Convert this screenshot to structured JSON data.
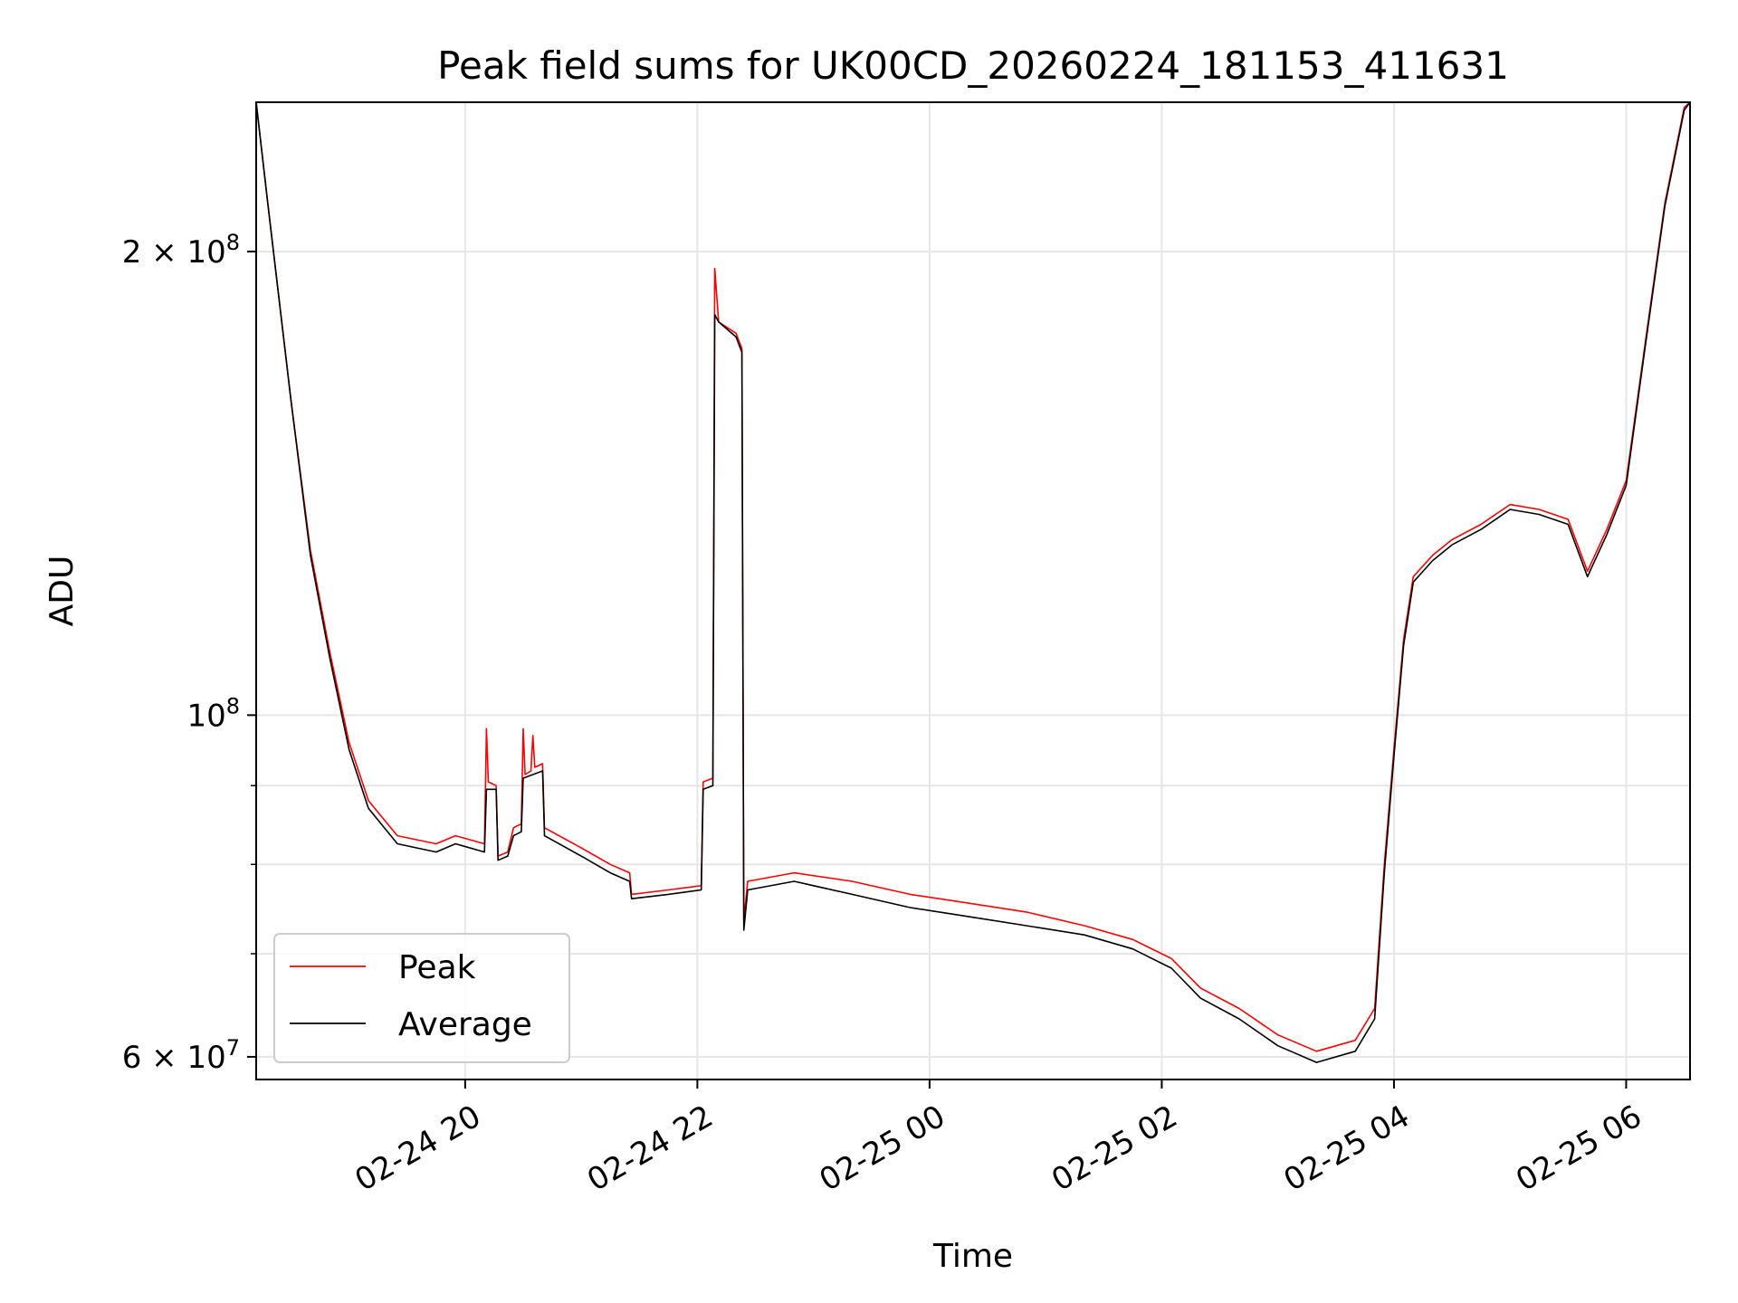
{
  "chart_data": {
    "type": "line",
    "title": "Peak field sums for UK00CD_20260224_181153_411631",
    "xlabel": "Time",
    "ylabel": "ADU",
    "yscale": "log",
    "xlim": [
      "2026-02-24 18:12",
      "2026-02-25 06:33"
    ],
    "ylim": [
      58000000,
      250000000
    ],
    "grid": true,
    "legend": {
      "position": "lower-left",
      "entries": [
        "Peak",
        "Average"
      ]
    },
    "colors": {
      "Peak": "#ff0000",
      "Average": "#000000",
      "grid": "#e6e6e6"
    },
    "x_ticks": [
      {
        "t": "2026-02-24 20:00",
        "label": "02-24 20"
      },
      {
        "t": "2026-02-24 22:00",
        "label": "02-24 22"
      },
      {
        "t": "2026-02-25 00:00",
        "label": "02-25 00"
      },
      {
        "t": "2026-02-25 02:00",
        "label": "02-25 02"
      },
      {
        "t": "2026-02-25 04:00",
        "label": "02-25 04"
      },
      {
        "t": "2026-02-25 06:00",
        "label": "02-25 06"
      }
    ],
    "y_major_ticks": [
      {
        "value": 60000000,
        "mantissa": "6",
        "exp": "7"
      },
      {
        "value": 100000000,
        "mantissa": "",
        "exp": "8"
      },
      {
        "value": 200000000,
        "mantissa": "2",
        "exp": "8"
      }
    ],
    "y_minor_ticks": [
      70000000,
      80000000,
      90000000
    ],
    "series": [
      {
        "name": "Peak",
        "points": [
          [
            "2026-02-24 18:12",
            250000000
          ],
          [
            "2026-02-24 18:18",
            215000000
          ],
          [
            "2026-02-24 18:30",
            160000000
          ],
          [
            "2026-02-24 18:40",
            128000000
          ],
          [
            "2026-02-24 18:50",
            110000000
          ],
          [
            "2026-02-24 19:00",
            96000000
          ],
          [
            "2026-02-24 19:10",
            88000000
          ],
          [
            "2026-02-24 19:25",
            83500000
          ],
          [
            "2026-02-24 19:45",
            82500000
          ],
          [
            "2026-02-24 19:55",
            83500000
          ],
          [
            "2026-02-24 20:10",
            82500000
          ],
          [
            "2026-02-24 20:11",
            98000000
          ],
          [
            "2026-02-24 20:12",
            90500000
          ],
          [
            "2026-02-24 20:16",
            90000000
          ],
          [
            "2026-02-24 20:17",
            81000000
          ],
          [
            "2026-02-24 20:22",
            81500000
          ],
          [
            "2026-02-24 20:25",
            84500000
          ],
          [
            "2026-02-24 20:29",
            85000000
          ],
          [
            "2026-02-24 20:30",
            98000000
          ],
          [
            "2026-02-24 20:31",
            91500000
          ],
          [
            "2026-02-24 20:34",
            92000000
          ],
          [
            "2026-02-24 20:35",
            97000000
          ],
          [
            "2026-02-24 20:36",
            92500000
          ],
          [
            "2026-02-24 20:40",
            93000000
          ],
          [
            "2026-02-24 20:41",
            84500000
          ],
          [
            "2026-02-24 21:00",
            82000000
          ],
          [
            "2026-02-24 21:15",
            80000000
          ],
          [
            "2026-02-24 21:25",
            79000000
          ],
          [
            "2026-02-24 21:26",
            76500000
          ],
          [
            "2026-02-24 21:45",
            77000000
          ],
          [
            "2026-02-24 22:02",
            77500000
          ],
          [
            "2026-02-24 22:03",
            90500000
          ],
          [
            "2026-02-24 22:08",
            91000000
          ],
          [
            "2026-02-24 22:09",
            195000000
          ],
          [
            "2026-02-24 22:11",
            180000000
          ],
          [
            "2026-02-24 22:20",
            177000000
          ],
          [
            "2026-02-24 22:23",
            173000000
          ],
          [
            "2026-02-24 22:24",
            73500000
          ],
          [
            "2026-02-24 22:26",
            78000000
          ],
          [
            "2026-02-24 22:50",
            79000000
          ],
          [
            "2026-02-24 23:20",
            78000000
          ],
          [
            "2026-02-24 23:50",
            76500000
          ],
          [
            "2026-02-25 00:20",
            75500000
          ],
          [
            "2026-02-25 00:50",
            74500000
          ],
          [
            "2026-02-25 01:20",
            73000000
          ],
          [
            "2026-02-25 01:45",
            71500000
          ],
          [
            "2026-02-25 02:05",
            69500000
          ],
          [
            "2026-02-25 02:20",
            66500000
          ],
          [
            "2026-02-25 02:40",
            64500000
          ],
          [
            "2026-02-25 03:00",
            62000000
          ],
          [
            "2026-02-25 03:20",
            60500000
          ],
          [
            "2026-02-25 03:40",
            61500000
          ],
          [
            "2026-02-25 03:50",
            64500000
          ],
          [
            "2026-02-25 03:55",
            80000000
          ],
          [
            "2026-02-25 04:00",
            95000000
          ],
          [
            "2026-02-25 04:05",
            112000000
          ],
          [
            "2026-02-25 04:10",
            123000000
          ],
          [
            "2026-02-25 04:20",
            127000000
          ],
          [
            "2026-02-25 04:30",
            130000000
          ],
          [
            "2026-02-25 04:45",
            133000000
          ],
          [
            "2026-02-25 05:00",
            137000000
          ],
          [
            "2026-02-25 05:15",
            136000000
          ],
          [
            "2026-02-25 05:30",
            134000000
          ],
          [
            "2026-02-25 05:40",
            124000000
          ],
          [
            "2026-02-25 05:50",
            132000000
          ],
          [
            "2026-02-25 06:00",
            142000000
          ],
          [
            "2026-02-25 06:10",
            175000000
          ],
          [
            "2026-02-25 06:20",
            215000000
          ],
          [
            "2026-02-25 06:30",
            248000000
          ],
          [
            "2026-02-25 06:33",
            250000000
          ]
        ]
      },
      {
        "name": "Average",
        "points": [
          [
            "2026-02-24 18:12",
            250000000
          ],
          [
            "2026-02-24 18:18",
            215000000
          ],
          [
            "2026-02-24 18:30",
            160000000
          ],
          [
            "2026-02-24 18:40",
            127000000
          ],
          [
            "2026-02-24 18:50",
            109000000
          ],
          [
            "2026-02-24 19:00",
            95000000
          ],
          [
            "2026-02-24 19:10",
            87000000
          ],
          [
            "2026-02-24 19:25",
            82500000
          ],
          [
            "2026-02-24 19:45",
            81500000
          ],
          [
            "2026-02-24 19:55",
            82500000
          ],
          [
            "2026-02-24 20:10",
            81500000
          ],
          [
            "2026-02-24 20:11",
            89500000
          ],
          [
            "2026-02-24 20:16",
            89500000
          ],
          [
            "2026-02-24 20:17",
            80500000
          ],
          [
            "2026-02-24 20:22",
            81000000
          ],
          [
            "2026-02-24 20:25",
            83500000
          ],
          [
            "2026-02-24 20:29",
            84000000
          ],
          [
            "2026-02-24 20:30",
            91000000
          ],
          [
            "2026-02-24 20:40",
            92000000
          ],
          [
            "2026-02-24 20:41",
            83500000
          ],
          [
            "2026-02-24 21:00",
            81000000
          ],
          [
            "2026-02-24 21:15",
            79000000
          ],
          [
            "2026-02-24 21:25",
            78000000
          ],
          [
            "2026-02-24 21:26",
            76000000
          ],
          [
            "2026-02-24 21:45",
            76500000
          ],
          [
            "2026-02-24 22:02",
            77000000
          ],
          [
            "2026-02-24 22:03",
            89500000
          ],
          [
            "2026-02-24 22:08",
            90000000
          ],
          [
            "2026-02-24 22:09",
            182000000
          ],
          [
            "2026-02-24 22:11",
            180000000
          ],
          [
            "2026-02-24 22:20",
            176000000
          ],
          [
            "2026-02-24 22:23",
            172000000
          ],
          [
            "2026-02-24 22:24",
            72500000
          ],
          [
            "2026-02-24 22:26",
            77000000
          ],
          [
            "2026-02-24 22:50",
            78000000
          ],
          [
            "2026-02-24 23:20",
            76500000
          ],
          [
            "2026-02-24 23:50",
            75000000
          ],
          [
            "2026-02-25 00:20",
            74000000
          ],
          [
            "2026-02-25 00:50",
            73000000
          ],
          [
            "2026-02-25 01:20",
            72000000
          ],
          [
            "2026-02-25 01:45",
            70500000
          ],
          [
            "2026-02-25 02:05",
            68500000
          ],
          [
            "2026-02-25 02:20",
            65500000
          ],
          [
            "2026-02-25 02:40",
            63500000
          ],
          [
            "2026-02-25 03:00",
            61000000
          ],
          [
            "2026-02-25 03:20",
            59500000
          ],
          [
            "2026-02-25 03:40",
            60500000
          ],
          [
            "2026-02-25 03:50",
            63500000
          ],
          [
            "2026-02-25 03:55",
            79000000
          ],
          [
            "2026-02-25 04:00",
            94000000
          ],
          [
            "2026-02-25 04:05",
            111000000
          ],
          [
            "2026-02-25 04:10",
            122000000
          ],
          [
            "2026-02-25 04:20",
            126000000
          ],
          [
            "2026-02-25 04:30",
            129000000
          ],
          [
            "2026-02-25 04:45",
            132000000
          ],
          [
            "2026-02-25 05:00",
            136000000
          ],
          [
            "2026-02-25 05:15",
            135000000
          ],
          [
            "2026-02-25 05:30",
            133000000
          ],
          [
            "2026-02-25 05:40",
            123000000
          ],
          [
            "2026-02-25 05:50",
            131000000
          ],
          [
            "2026-02-25 06:00",
            141000000
          ],
          [
            "2026-02-25 06:10",
            174000000
          ],
          [
            "2026-02-25 06:20",
            214000000
          ],
          [
            "2026-02-25 06:30",
            247000000
          ],
          [
            "2026-02-25 06:33",
            250000000
          ]
        ]
      }
    ]
  }
}
